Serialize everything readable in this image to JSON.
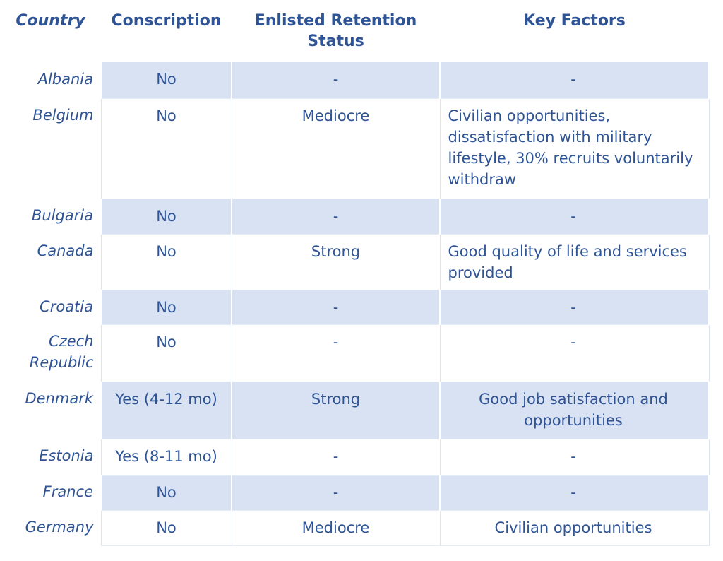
{
  "table": {
    "headers": [
      "Country",
      "Conscription",
      "Enlisted Retention Status",
      "Key Factors"
    ],
    "rows": [
      {
        "country": "Albania",
        "conscription": "No",
        "retention": "-",
        "key_factors": "-"
      },
      {
        "country": "Belgium",
        "conscription": "No",
        "retention": "Mediocre",
        "key_factors": "Civilian opportunities, dissatisfaction with military lifestyle, 30% recruits voluntarily withdraw"
      },
      {
        "country": "Bulgaria",
        "conscription": "No",
        "retention": "-",
        "key_factors": "-"
      },
      {
        "country": "Canada",
        "conscription": "No",
        "retention": "Strong",
        "key_factors": "Good quality of life and services provided"
      },
      {
        "country": "Croatia",
        "conscription": "No",
        "retention": "-",
        "key_factors": "-"
      },
      {
        "country": "Czech Republic",
        "conscription": "No",
        "retention": "-",
        "key_factors": "-"
      },
      {
        "country": "Denmark",
        "conscription": "Yes (4-12 mo)",
        "retention": "Strong",
        "key_factors": "Good job satisfaction and opportunities"
      },
      {
        "country": "Estonia",
        "conscription": "Yes (8-11 mo)",
        "retention": "-",
        "key_factors": "-"
      },
      {
        "country": "France",
        "conscription": "No",
        "retention": "-",
        "key_factors": "-"
      },
      {
        "country": "Germany",
        "conscription": "No",
        "retention": "Mediocre",
        "key_factors": "Civilian opportunities"
      }
    ],
    "colors": {
      "accent_text": "#2f5496",
      "row_shade": "#d9e2f3",
      "grid_line_light": "#dce4f0",
      "grid_line_white": "#ffffff",
      "page_background": "#ffffff"
    }
  }
}
